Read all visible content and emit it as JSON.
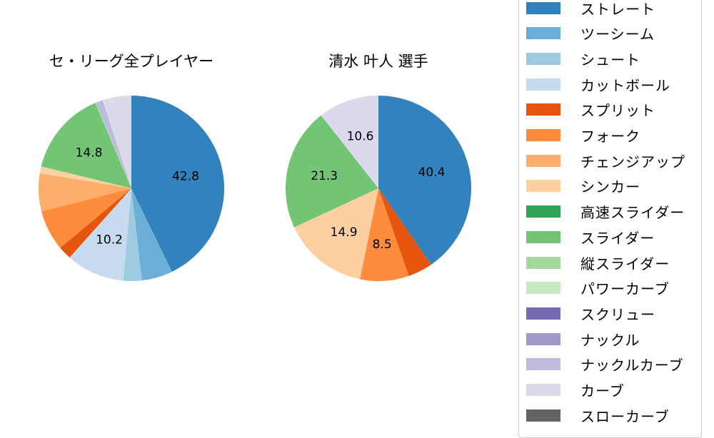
{
  "chart_data": [
    {
      "type": "pie",
      "title": "セ・リーグ全プレイヤー",
      "center": [
        184,
        264
      ],
      "radius": 130,
      "categories": [
        "ストレート",
        "ツーシーム",
        "シュート",
        "カットボール",
        "スプリット",
        "フォーク",
        "チェンジアップ",
        "シンカー",
        "高速スライダー",
        "スライダー",
        "縦スライダー",
        "パワーカーブ",
        "スクリュー",
        "ナックル",
        "ナックルカーブ",
        "カーブ",
        "スローカーブ"
      ],
      "values": [
        42.8,
        5.4,
        3.2,
        10.2,
        2.3,
        7.1,
        6.6,
        1.2,
        0.0,
        14.8,
        0.2,
        0.0,
        0.0,
        0.0,
        1.2,
        5.0,
        0.0
      ],
      "labels_shown": [
        "42.8",
        "10.2",
        "14.8"
      ]
    },
    {
      "type": "pie",
      "title": "清水 叶人  選手",
      "center": [
        530,
        264
      ],
      "radius": 130,
      "categories": [
        "ストレート",
        "ツーシーム",
        "シュート",
        "カットボール",
        "スプリット",
        "フォーク",
        "チェンジアップ",
        "シンカー",
        "高速スライダー",
        "スライダー",
        "縦スライダー",
        "パワーカーブ",
        "スクリュー",
        "ナックル",
        "ナックルカーブ",
        "カーブ",
        "スローカーブ"
      ],
      "values": [
        40.4,
        0,
        0,
        0,
        4.3,
        8.5,
        0,
        14.9,
        0,
        21.3,
        0,
        0,
        0,
        0,
        0,
        10.6,
        0
      ],
      "labels_shown": [
        "40.4",
        "8.5",
        "14.9",
        "21.3",
        "10.6"
      ]
    }
  ],
  "legend": {
    "items": [
      {
        "label": "ストレート",
        "color": "#3182bd"
      },
      {
        "label": "ツーシーム",
        "color": "#6baed6"
      },
      {
        "label": "シュート",
        "color": "#9ecae1"
      },
      {
        "label": "カットボール",
        "color": "#c6dbef"
      },
      {
        "label": "スプリット",
        "color": "#e6550d"
      },
      {
        "label": "フォーク",
        "color": "#fd8d3c"
      },
      {
        "label": "チェンジアップ",
        "color": "#fdae6b"
      },
      {
        "label": "シンカー",
        "color": "#fdd0a2"
      },
      {
        "label": "高速スライダー",
        "color": "#31a354"
      },
      {
        "label": "スライダー",
        "color": "#74c476"
      },
      {
        "label": "縦スライダー",
        "color": "#a1d99b"
      },
      {
        "label": "パワーカーブ",
        "color": "#c7e9c0"
      },
      {
        "label": "スクリュー",
        "color": "#756bb1"
      },
      {
        "label": "ナックル",
        "color": "#9e9ac8"
      },
      {
        "label": "ナックルカーブ",
        "color": "#bcbddc"
      },
      {
        "label": "カーブ",
        "color": "#dadaeb"
      },
      {
        "label": "スローカーブ",
        "color": "#636363"
      }
    ]
  }
}
